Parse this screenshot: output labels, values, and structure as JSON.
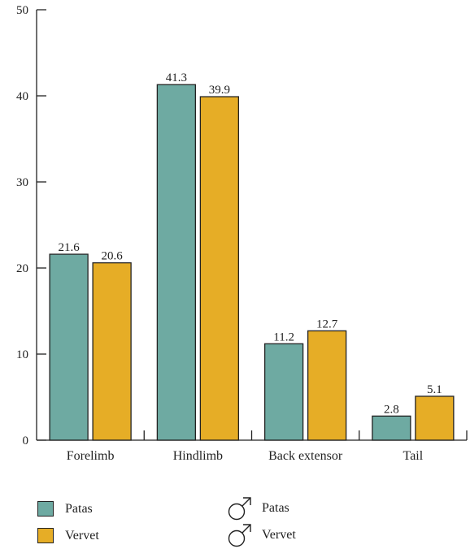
{
  "chart_data": {
    "type": "bar",
    "categories": [
      "Forelimb",
      "Hindlimb",
      "Back extensor",
      "Tail"
    ],
    "series": [
      {
        "name": "Patas",
        "values": [
          21.6,
          41.3,
          11.2,
          2.8
        ]
      },
      {
        "name": "Vervet",
        "values": [
          20.6,
          39.9,
          12.7,
          5.1
        ]
      }
    ],
    "data_labels": [
      [
        "21.6",
        "41.3",
        "11.2",
        "2.8"
      ],
      [
        "20.6",
        "39.9",
        "12.7",
        "5.1"
      ]
    ],
    "ylim": [
      0,
      50
    ],
    "yticks": [
      0,
      10,
      20,
      30,
      40,
      50
    ],
    "colors": [
      "#6eaaa2",
      "#e6ad26"
    ],
    "legend_position": "bottom",
    "grid": false
  },
  "legend": {
    "items": [
      {
        "label": "Patas",
        "color": "#6eaaa2",
        "icon": "swatch"
      },
      {
        "label": "Vervet",
        "color": "#e6ad26",
        "icon": "swatch"
      },
      {
        "label": "Patas",
        "icon": "male-symbol-icon"
      },
      {
        "label": "Vervet",
        "icon": "male-symbol-icon"
      }
    ]
  }
}
